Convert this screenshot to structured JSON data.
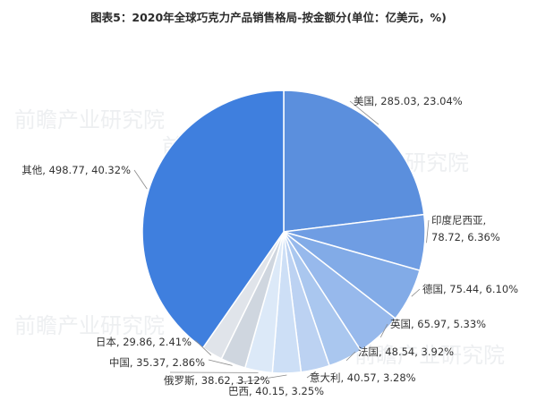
{
  "title": "图表5：2020年全球巧克力产品销售格局-按金额分(单位：亿美元，%)",
  "watermark": "前瞻产业研究院",
  "colors": {
    "slices": [
      "#5b8fdd",
      "#6f9de3",
      "#82abe7",
      "#97b9ec",
      "#aac7ef",
      "#bcd2f2",
      "#cddff6",
      "#dce9f8",
      "#cfd6df",
      "#e0e4ea",
      "#3f7fde"
    ],
    "leader": "#8a8a8a",
    "label": "#333333"
  },
  "chart_data": {
    "type": "pie",
    "title": "图表5：2020年全球巧克力产品销售格局-按金额分(单位：亿美元，%)",
    "slices": [
      {
        "label": "美国",
        "value": 285.03,
        "percent": 23.04,
        "text": "美国, 285.03, 23.04%"
      },
      {
        "label": "印度尼西亚",
        "value": 78.72,
        "percent": 6.36,
        "text": "印度尼西亚,",
        "text2": "78.72, 6.36%"
      },
      {
        "label": "德国",
        "value": 75.44,
        "percent": 6.1,
        "text": "德国, 75.44, 6.10%"
      },
      {
        "label": "英国",
        "value": 65.97,
        "percent": 5.33,
        "text": "英国, 65.97, 5.33%"
      },
      {
        "label": "法国",
        "value": 48.54,
        "percent": 3.92,
        "text": "法国, 48.54, 3.92%"
      },
      {
        "label": "意大利",
        "value": 40.57,
        "percent": 3.28,
        "text": "意大利, 40.57, 3.28%"
      },
      {
        "label": "巴西",
        "value": 40.15,
        "percent": 3.25,
        "text": "巴西, 40.15, 3.25%"
      },
      {
        "label": "俄罗斯",
        "value": 38.62,
        "percent": 3.12,
        "text": "俄罗斯, 38.62, 3.12%"
      },
      {
        "label": "中国",
        "value": 35.37,
        "percent": 2.86,
        "text": "中国, 35.37, 2.86%"
      },
      {
        "label": "日本",
        "value": 29.86,
        "percent": 2.41,
        "text": "日本, 29.86, 2.41%"
      },
      {
        "label": "其他",
        "value": 498.77,
        "percent": 40.32,
        "text": "其他, 498.77, 40.32%"
      }
    ],
    "start": "12 o'clock",
    "direction": "clockwise"
  }
}
